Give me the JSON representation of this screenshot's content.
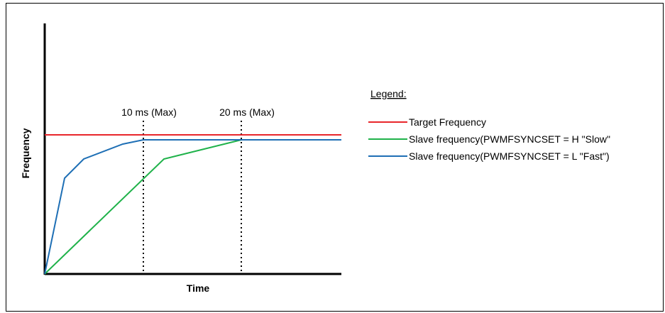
{
  "axes": {
    "xlabel": "Time",
    "ylabel": "Frequency"
  },
  "markers": [
    {
      "label": "10 ms (Max)"
    },
    {
      "label": "20 ms (Max)"
    }
  ],
  "legend": {
    "title": "Legend:",
    "items": [
      {
        "label": "Target Frequency",
        "color": "#e8262b"
      },
      {
        "label": "Slave frequency(PWMFSYNCSET = H \"Slow\"",
        "color": "#1fb24a"
      },
      {
        "label": "Slave frequency(PWMFSYNCSET = L \"Fast\")",
        "color": "#1e6fb5"
      }
    ]
  },
  "colors": {
    "target": "#e8262b",
    "slow": "#1fb24a",
    "fast": "#1e6fb5",
    "axis": "#000000"
  }
}
